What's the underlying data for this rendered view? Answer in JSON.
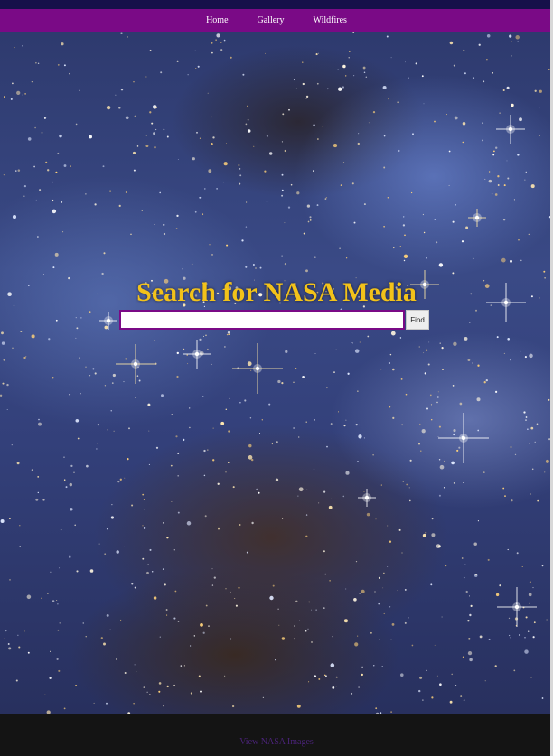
{
  "nav": {
    "items": [
      {
        "label": "Home"
      },
      {
        "label": "Gallery"
      },
      {
        "label": "Wildfires"
      }
    ]
  },
  "hero": {
    "title": "Search for NASA Media",
    "background_icon": "star-field-image"
  },
  "search": {
    "value": "",
    "placeholder": "",
    "button_label": "Find"
  },
  "footer": {
    "link_label": "View NASA Images"
  },
  "colors": {
    "nav_bg": "#7a0a86",
    "top_strip": "#15104a",
    "title": "#f2c21a",
    "footer_bg": "#141414",
    "footer_link": "#4a2378"
  }
}
